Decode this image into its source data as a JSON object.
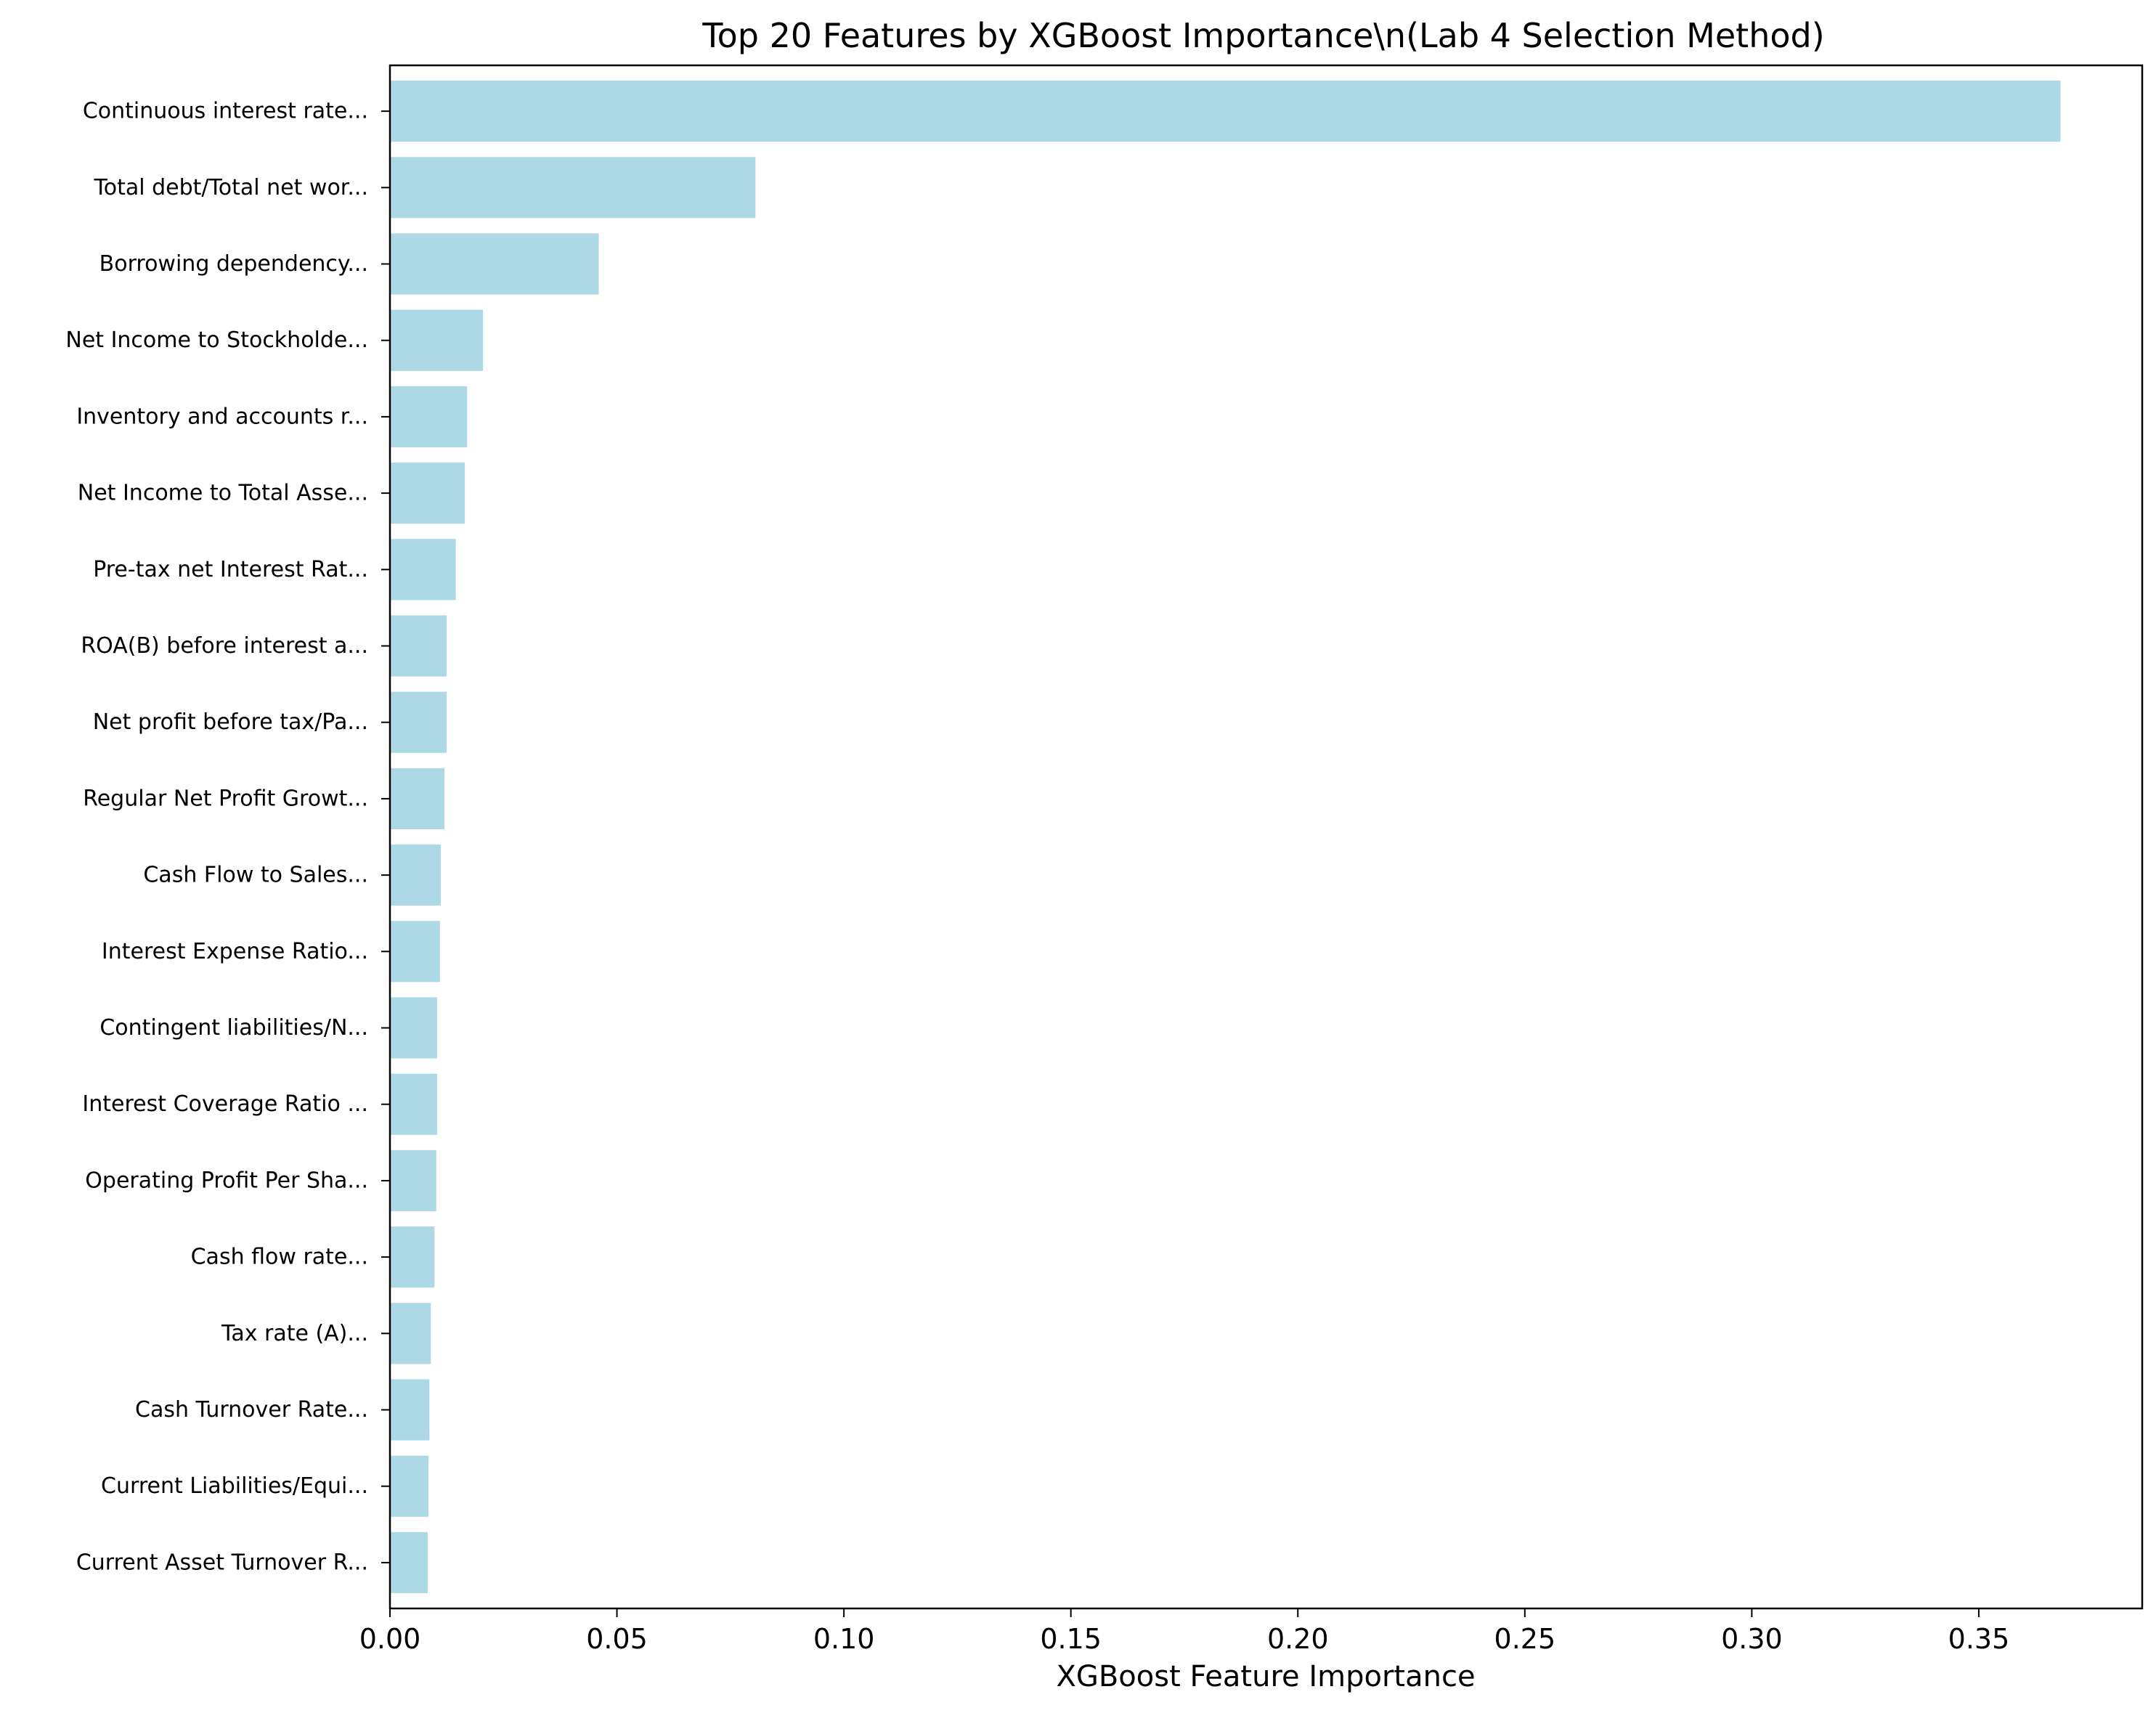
{
  "chart_data": {
    "type": "bar",
    "orientation": "horizontal",
    "title": "Top 20 Features by XGBoost Importance\\n(Lab 4 Selection Method)",
    "xlabel": "XGBoost Feature Importance",
    "ylabel": "",
    "xlim": [
      0,
      0.386
    ],
    "xticks": [
      0.0,
      0.05,
      0.1,
      0.15,
      0.2,
      0.25,
      0.3,
      0.35
    ],
    "xtick_labels": [
      "0.00",
      "0.05",
      "0.10",
      "0.15",
      "0.20",
      "0.25",
      "0.30",
      "0.35"
    ],
    "grid": false,
    "legend": "none",
    "bar_color": "#add8e6",
    "categories": [
      "Continuous interest rate...",
      "Total debt/Total net wor...",
      "Borrowing dependency...",
      "Net Income to Stockholde...",
      "Inventory and accounts r...",
      "Net Income to Total Asse...",
      "Pre-tax net Interest Rat...",
      "ROA(B) before interest a...",
      "Net profit before tax/Pa...",
      "Regular Net Profit Growt...",
      "Cash Flow to Sales...",
      "Interest Expense Ratio...",
      "Contingent liabilities/N...",
      "Interest Coverage Ratio ...",
      "Operating Profit Per Sha...",
      "Cash flow rate...",
      "Tax rate (A)...",
      "Cash Turnover Rate...",
      "Current Liabilities/Equi...",
      "Current Asset Turnover R..."
    ],
    "values": [
      0.368,
      0.0805,
      0.046,
      0.0205,
      0.017,
      0.0165,
      0.0145,
      0.0125,
      0.0125,
      0.012,
      0.0112,
      0.011,
      0.0104,
      0.0104,
      0.0102,
      0.0098,
      0.009,
      0.0087,
      0.0085,
      0.0083
    ]
  }
}
